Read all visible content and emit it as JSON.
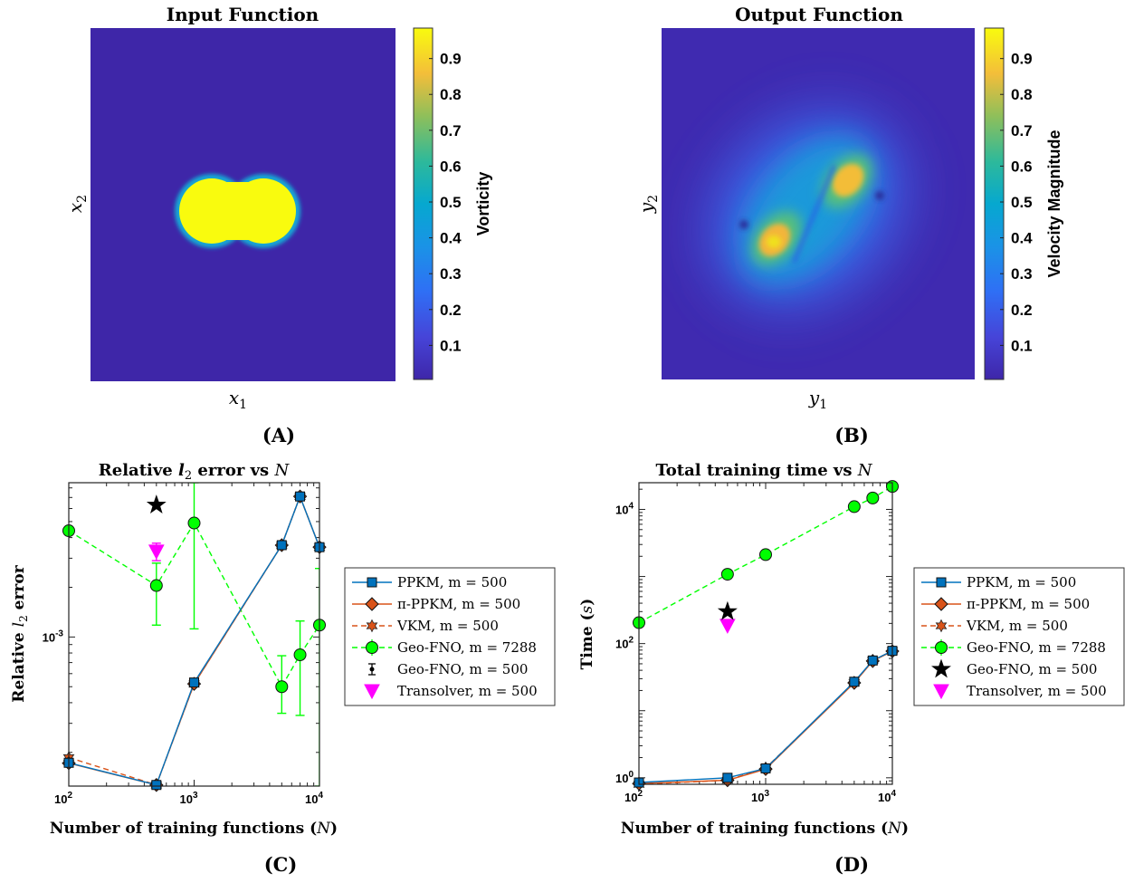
{
  "panels": {
    "A": {
      "label": "(A)",
      "title": "Input Function",
      "xlabel": "x",
      "xlabel_sub": "1",
      "ylabel": "x",
      "ylabel_sub": "2",
      "colorbar": {
        "label": "Vorticity",
        "ticks": [
          "0.1",
          "0.2",
          "0.3",
          "0.4",
          "0.5",
          "0.6",
          "0.7",
          "0.8",
          "0.9"
        ]
      }
    },
    "B": {
      "label": "(B)",
      "title": "Output Function",
      "xlabel": "y",
      "xlabel_sub": "1",
      "ylabel": "y",
      "ylabel_sub": "2",
      "colorbar": {
        "label": "Velocity Magnitude",
        "ticks": [
          "0.1",
          "0.2",
          "0.3",
          "0.4",
          "0.5",
          "0.6",
          "0.7",
          "0.8",
          "0.9"
        ]
      }
    },
    "C": {
      "label": "(C)"
    },
    "D": {
      "label": "(D)"
    }
  },
  "colors": {
    "background_field": "#3e26a8",
    "blob": "#f9fb0e",
    "ppkm": "#0072bd",
    "pi_ppkm": "#d95319",
    "geofno": "#00ff00",
    "star": "#000000",
    "transolver": "#ff00ff"
  },
  "chart_data": [
    {
      "type": "line",
      "title_prefix": "Relative ",
      "title_var": "l",
      "title_sub": "2",
      "title_suffix": " error vs ",
      "title_end": "N",
      "xlabel": "Number of training functions (",
      "xlabel_var": "N",
      "xlabel_end": ")",
      "ylabel_prefix": "Relative ",
      "ylabel_var": "l",
      "ylabel_sub": "2",
      "ylabel_suffix": " error",
      "xscale": "log",
      "yscale": "log",
      "xlim": [
        100,
        10000
      ],
      "ylim": [
        0.000125,
        0.0086
      ],
      "xticks": [
        {
          "v": 100,
          "b": "10",
          "e": "2"
        },
        {
          "v": 1000,
          "b": "10",
          "e": "3"
        },
        {
          "v": 10000,
          "b": "10",
          "e": "4"
        }
      ],
      "yticks": [
        {
          "v": 0.001,
          "b": "10",
          "e": "-3"
        }
      ],
      "series": [
        {
          "name": "PPKM,  m = 500",
          "key": "ppkm",
          "x": [
            100,
            500,
            1000,
            5000,
            7000,
            10000
          ],
          "y": [
            0.000173,
            0.000127,
            0.00053,
            0.0036,
            0.0071,
            0.0035
          ]
        },
        {
          "name": "π-PPKM,  m = 500",
          "key": "pi_ppkm",
          "x": [
            100,
            500,
            1000,
            5000,
            7000,
            10000
          ],
          "y": [
            0.000172,
            0.000127,
            0.00052,
            0.0036,
            0.0071,
            0.0035
          ]
        },
        {
          "name": "VKM, m = 500",
          "key": "vkm",
          "x": [
            100,
            500,
            1000,
            5000,
            7000,
            10000
          ],
          "y": [
            0.000186,
            0.000127,
            0.00052,
            0.0036,
            0.0071,
            0.0035
          ]
        },
        {
          "name": "Geo-FNO, m = 7288",
          "key": "geofno",
          "x": [
            100,
            500,
            1000,
            5000,
            7000,
            10000
          ],
          "y": [
            0.0044,
            0.00205,
            0.0049,
            0.0005,
            0.00078,
            0.00118
          ],
          "err_lo": [
            0.0044,
            0.00118,
            0.00112,
            0.000345,
            0.000335,
            0.000125
          ],
          "err_hi": [
            0.0044,
            0.0028,
            0.0086,
            0.00077,
            0.00125,
            0.0026
          ]
        },
        {
          "name": "Geo-FNO, m = 500",
          "key": "geofno500",
          "x": [
            500
          ],
          "y": [
            0.0063
          ]
        },
        {
          "name": "Transolver, m = 500",
          "key": "transolver",
          "x": [
            500
          ],
          "y": [
            0.0033
          ],
          "err_lo": [
            0.0029
          ],
          "err_hi": [
            0.0037
          ]
        }
      ]
    },
    {
      "type": "line",
      "title_prefix": "Total training time vs ",
      "title_end": "N",
      "xlabel": "Number of training functions (",
      "xlabel_var": "N",
      "xlabel_end": ")",
      "ylabel_prefix": "Time (",
      "ylabel_var": "s",
      "ylabel_suffix": ")",
      "xscale": "log",
      "yscale": "log",
      "xlim": [
        100,
        10000
      ],
      "ylim": [
        0.8,
        25000
      ],
      "xticks": [
        {
          "v": 100,
          "b": "10",
          "e": "2"
        },
        {
          "v": 1000,
          "b": "10",
          "e": "3"
        },
        {
          "v": 10000,
          "b": "10",
          "e": "4"
        }
      ],
      "yticks": [
        {
          "v": 1,
          "b": "10",
          "e": "0"
        },
        {
          "v": 100,
          "b": "10",
          "e": "2"
        },
        {
          "v": 10000,
          "b": "10",
          "e": "4"
        }
      ],
      "series": [
        {
          "name": "PPKM,  m = 500",
          "key": "ppkm",
          "x": [
            100,
            500,
            1000,
            5000,
            7000,
            10000
          ],
          "y": [
            0.85,
            1.0,
            1.38,
            27,
            56,
            78
          ]
        },
        {
          "name": "π-PPKM,  m = 500",
          "key": "pi_ppkm",
          "x": [
            100,
            500,
            1000,
            5000,
            7000,
            10000
          ],
          "y": [
            0.82,
            0.92,
            1.35,
            26,
            55,
            77
          ]
        },
        {
          "name": "VKM, m = 500",
          "key": "vkm",
          "x": [
            100,
            500,
            1000,
            5000,
            7000,
            10000
          ],
          "y": [
            0.8,
            0.92,
            1.4,
            26,
            56,
            78
          ]
        },
        {
          "name": "Geo-FNO, m = 7288",
          "key": "geofno",
          "x": [
            100,
            500,
            1000,
            5000,
            7000,
            10000
          ],
          "y": [
            205,
            1080,
            2120,
            11000,
            14800,
            22000
          ]
        },
        {
          "name": "Geo-FNO, m = 500",
          "key": "geofno500",
          "x": [
            500
          ],
          "y": [
            300
          ]
        },
        {
          "name": "Transolver, m = 500",
          "key": "transolver",
          "x": [
            500
          ],
          "y": [
            185
          ]
        }
      ]
    }
  ]
}
